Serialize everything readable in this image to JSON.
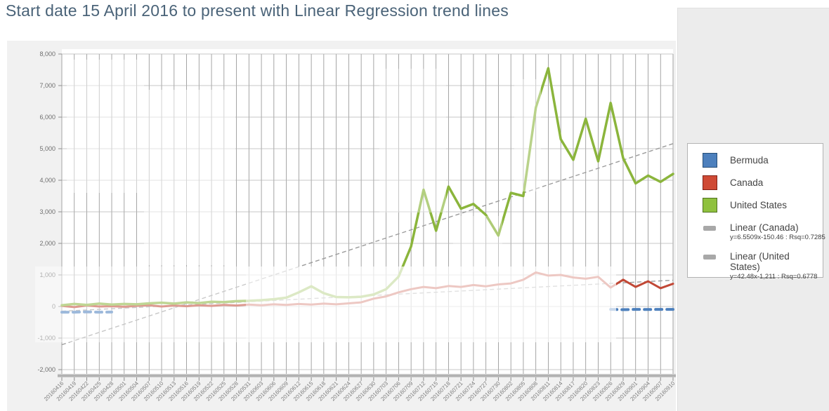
{
  "title": "Start date 15 April 2016 to present with Linear Regression trend lines",
  "chart_data": {
    "type": "line",
    "title": "Start date 15 April 2016 to present with Linear Regression trend lines",
    "xlabel": "",
    "ylabel": "",
    "ylim": [
      -2000,
      8000
    ],
    "grid": true,
    "legend_position": "right",
    "categories": [
      "20160416",
      "20160419",
      "20160422",
      "20160425",
      "20160428",
      "20160501",
      "20160504",
      "20160507",
      "20160510",
      "20160513",
      "20160516",
      "20160519",
      "20160522",
      "20160525",
      "20160528",
      "20160531",
      "20160603",
      "20160606",
      "20160609",
      "20160612",
      "20160615",
      "20160618",
      "20160621",
      "20160624",
      "20160627",
      "20160630",
      "20160703",
      "20160706",
      "20160709",
      "20160712",
      "20160715",
      "20160718",
      "20160721",
      "20160724",
      "20160727",
      "20160730",
      "20160802",
      "20160805",
      "20160808",
      "20160811",
      "20160814",
      "20160817",
      "20160820",
      "20160823",
      "20160826",
      "20160829",
      "20160901",
      "20160904",
      "20160907",
      "20160910"
    ],
    "y_ticks": [
      {
        "value": 8000,
        "label": "8,000"
      },
      {
        "value": 7000,
        "label": "7,000"
      },
      {
        "value": 6000,
        "label": "6,000"
      },
      {
        "value": 5000,
        "label": "5,000"
      },
      {
        "value": 4000,
        "label": "4,000"
      },
      {
        "value": 3000,
        "label": "3,000"
      },
      {
        "value": 2000,
        "label": "2,000"
      },
      {
        "value": 1000,
        "label": "1,000"
      },
      {
        "value": 0,
        "label": "0"
      },
      {
        "value": -1000,
        "label": "-1,000"
      },
      {
        "value": -2000,
        "label": "-2,000"
      }
    ],
    "series": [
      {
        "name": "Canada",
        "color": "#c14836",
        "dashed": false,
        "values": [
          20,
          -20,
          30,
          0,
          10,
          -10,
          20,
          40,
          0,
          30,
          10,
          40,
          20,
          50,
          30,
          60,
          40,
          70,
          50,
          80,
          60,
          90,
          70,
          100,
          130,
          250,
          320,
          450,
          550,
          620,
          580,
          650,
          620,
          680,
          640,
          700,
          730,
          850,
          1080,
          980,
          1000,
          920,
          880,
          940,
          600,
          850,
          620,
          800,
          580,
          720
        ]
      },
      {
        "name": "United States",
        "color": "#8bb53c",
        "dashed": false,
        "values": [
          40,
          80,
          50,
          90,
          60,
          80,
          70,
          100,
          120,
          90,
          130,
          110,
          150,
          140,
          170,
          180,
          200,
          230,
          280,
          450,
          640,
          420,
          300,
          290,
          310,
          380,
          550,
          950,
          1900,
          3700,
          2400,
          3800,
          3100,
          3250,
          2900,
          2250,
          3600,
          3500,
          6300,
          7550,
          5300,
          4650,
          5950,
          4600,
          6450,
          4700,
          3900,
          4150,
          3950,
          4200
        ]
      },
      {
        "name": "Bermuda",
        "color": "#4d80bd",
        "dashed": true,
        "values": [
          -180,
          -180,
          -170,
          -180,
          -175,
          null,
          null,
          null,
          null,
          null,
          null,
          null,
          null,
          null,
          null,
          null,
          null,
          null,
          null,
          null,
          null,
          null,
          null,
          null,
          null,
          null,
          null,
          null,
          null,
          null,
          null,
          null,
          null,
          null,
          null,
          null,
          null,
          null,
          null,
          null,
          null,
          null,
          null,
          null,
          -90,
          -100,
          -90,
          -95,
          -90,
          -90
        ]
      }
    ],
    "trend_lines": [
      {
        "name": "Linear (Canada)",
        "equation": "y=6.5509x-150.46",
        "rsq": "0.7285",
        "color": "#9b9b9b",
        "start_value": -150,
        "end_value": 832
      },
      {
        "name": "Linear (United States)",
        "equation": "y=42.48x-1,211",
        "rsq": "0.6778",
        "color": "#9b9b9b",
        "start_value": -1211,
        "end_value": 5160
      }
    ]
  },
  "legend": {
    "items": [
      {
        "label": "Bermuda",
        "type": "box",
        "color": "#4d80bd",
        "border": "#274f78"
      },
      {
        "label": "Canada",
        "type": "box",
        "color": "#cf4a35",
        "border": "#7f2015"
      },
      {
        "label": "United States",
        "type": "box",
        "color": "#8fc13e",
        "border": "#4f7120"
      },
      {
        "label": "Linear (Canada)",
        "type": "dash",
        "color": "#a8a8a8",
        "equation": "y=6.5509x-150.46 : Rsq=0.7285"
      },
      {
        "label": "Linear (United States)",
        "type": "dash",
        "color": "#a8a8a8",
        "equation": "y=42.48x-1,211 : Rsq=0.6778"
      }
    ]
  }
}
